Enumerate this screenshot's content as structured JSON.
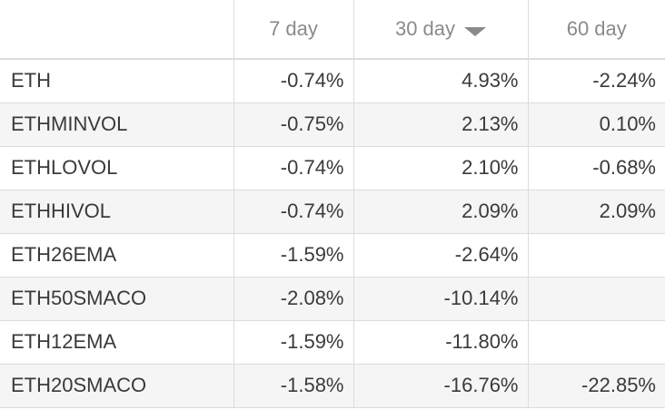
{
  "columns": {
    "c1": "7 day",
    "c2": "30 day",
    "c3": "60 day"
  },
  "sort": {
    "column": "30 day",
    "direction": "descending",
    "icon": "caret-down-icon"
  },
  "rows": [
    {
      "name": "ETH",
      "d7": "-0.74%",
      "d30": "4.93%",
      "d60": "-2.24%"
    },
    {
      "name": "ETHMINVOL",
      "d7": "-0.75%",
      "d30": "2.13%",
      "d60": "0.10%"
    },
    {
      "name": "ETHLOVOL",
      "d7": "-0.74%",
      "d30": "2.10%",
      "d60": "-0.68%"
    },
    {
      "name": "ETHHIVOL",
      "d7": "-0.74%",
      "d30": "2.09%",
      "d60": "2.09%"
    },
    {
      "name": "ETH26EMA",
      "d7": "-1.59%",
      "d30": "-2.64%",
      "d60": ""
    },
    {
      "name": "ETH50SMACO",
      "d7": "-2.08%",
      "d30": "-10.14%",
      "d60": ""
    },
    {
      "name": "ETH12EMA",
      "d7": "-1.59%",
      "d30": "-11.80%",
      "d60": ""
    },
    {
      "name": "ETH20SMACO",
      "d7": "-1.58%",
      "d30": "-16.76%",
      "d60": "-22.85%"
    }
  ]
}
